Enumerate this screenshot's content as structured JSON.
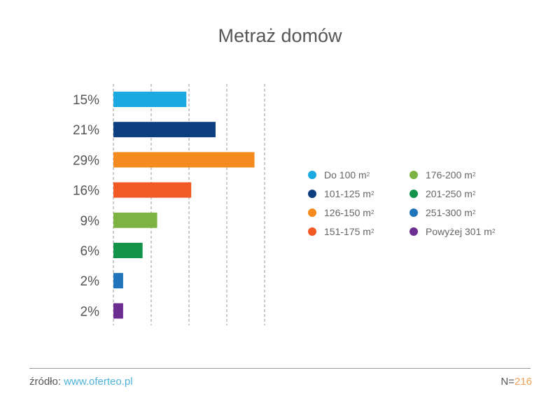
{
  "chart_data": {
    "type": "bar",
    "orientation": "horizontal",
    "title": "Metraż domów",
    "categories": [
      "Do 100 m²",
      "101-125 m²",
      "126-150 m²",
      "151-175 m²",
      "176-200 m²",
      "201-250 m²",
      "251-300 m²",
      "Powyżej 301 m²"
    ],
    "values": [
      15,
      21,
      29,
      16,
      9,
      6,
      2,
      2
    ],
    "value_labels": [
      "15%",
      "21%",
      "29%",
      "16%",
      "9%",
      "6%",
      "2%",
      "2%"
    ],
    "colors": [
      "#1ba9e1",
      "#0d3f80",
      "#f58a1f",
      "#f15a24",
      "#7cb342",
      "#13934a",
      "#1f74bb",
      "#6b2d8f"
    ],
    "legend": [
      {
        "label": "Do 100 m",
        "sup": "2"
      },
      {
        "label": "101-125 m",
        "sup": "2"
      },
      {
        "label": "126-150 m",
        "sup": "2"
      },
      {
        "label": "151-175 m",
        "sup": "2"
      },
      {
        "label": "176-200 m",
        "sup": "2"
      },
      {
        "label": "201-250 m",
        "sup": "2"
      },
      {
        "label": "251-300 m",
        "sup": "2"
      },
      {
        "label": "Powyżej 301 m",
        "sup": "2"
      }
    ],
    "legend_placement": "right",
    "grid": true,
    "xlim": [
      0,
      31
    ]
  },
  "footer": {
    "source_label": "źródło: ",
    "source_link": "www.oferteo.pl",
    "n_label": "N=",
    "n_value": "216"
  }
}
